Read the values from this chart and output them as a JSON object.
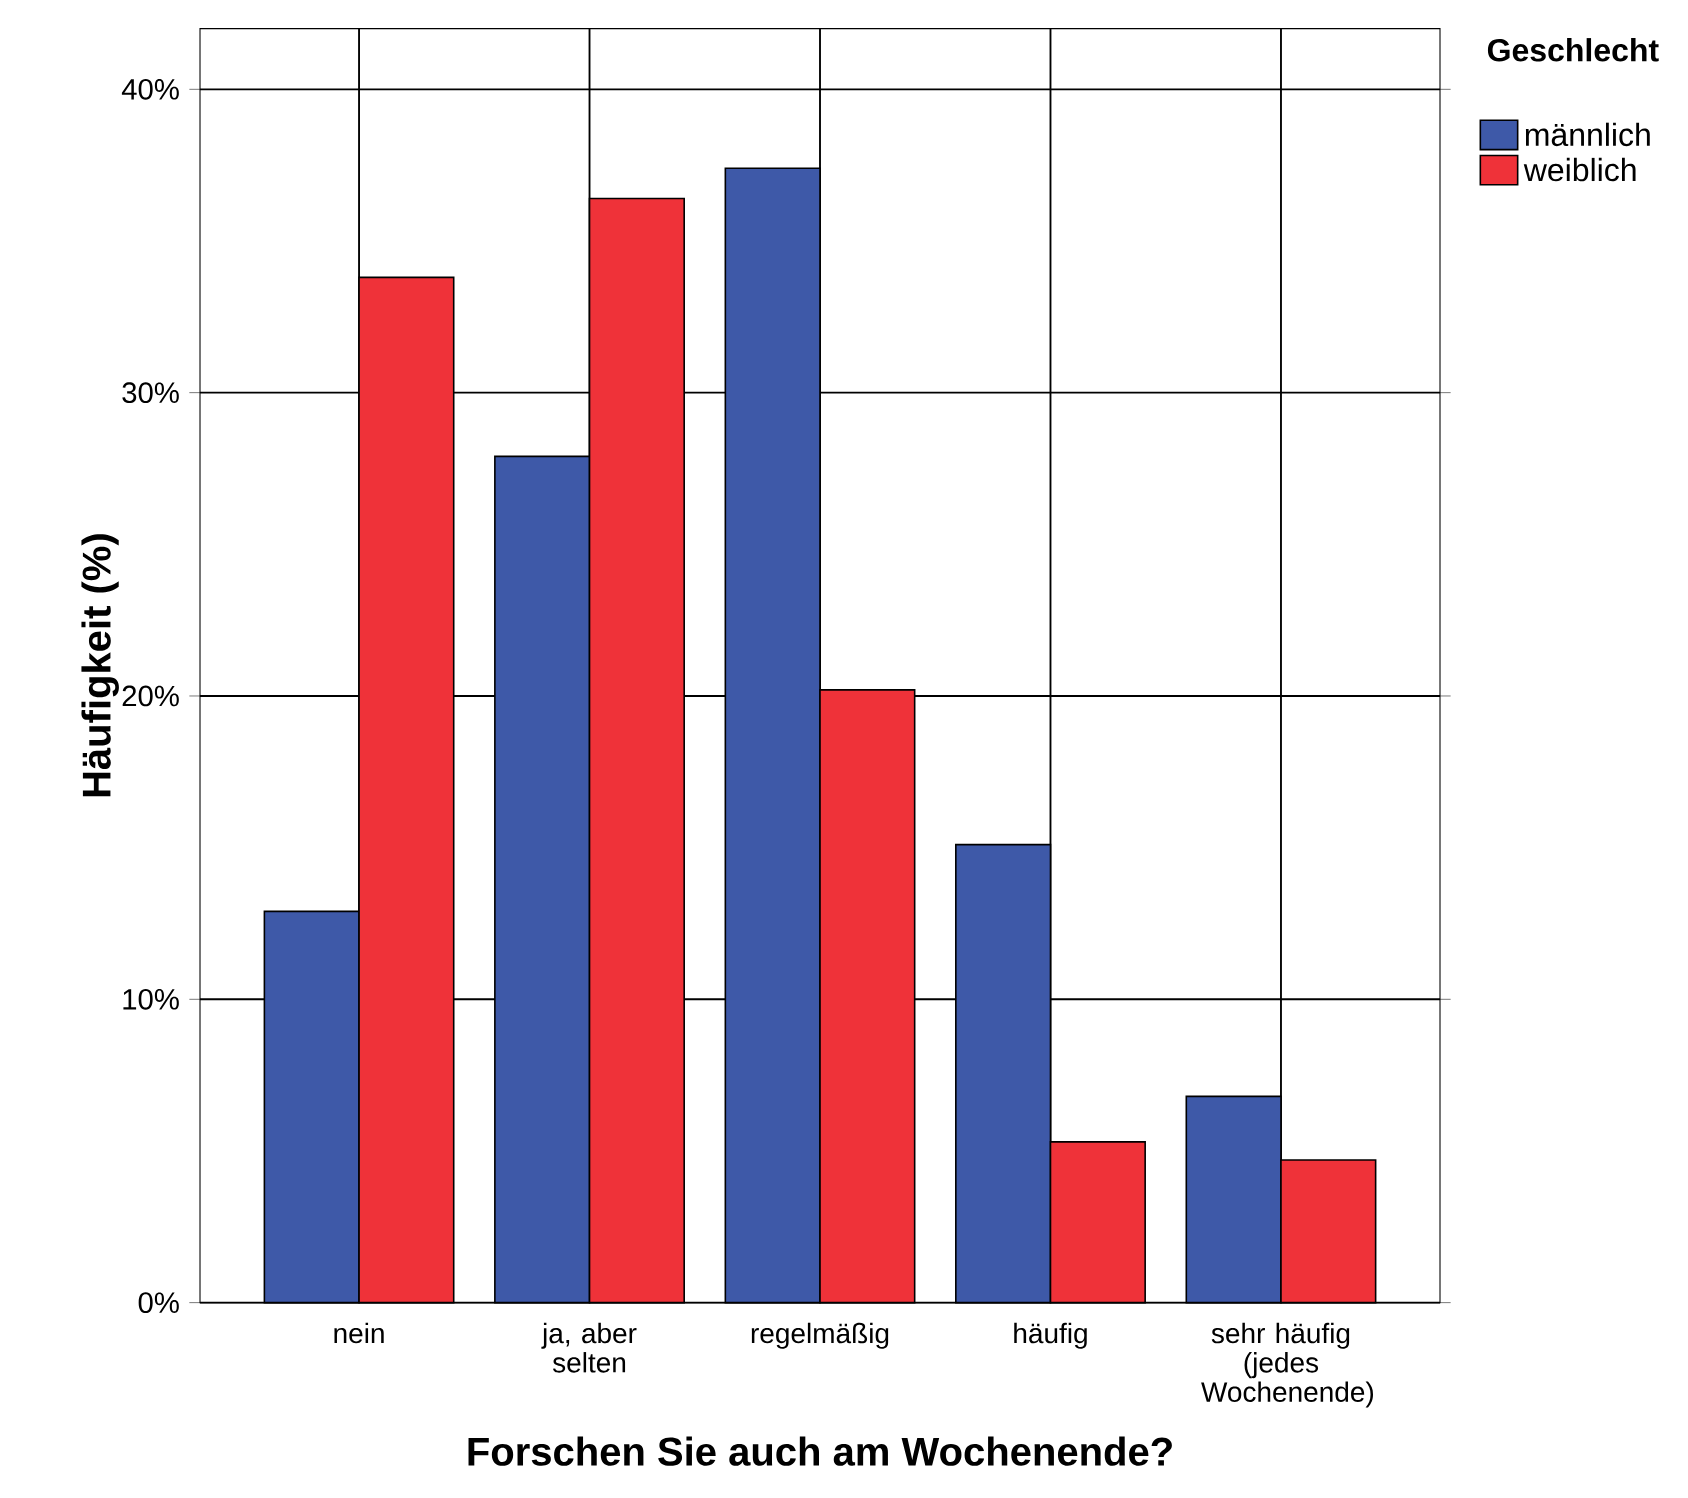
{
  "chart_data": {
    "type": "bar",
    "xlabel": "Forschen Sie auch am Wochenende?",
    "ylabel": "Häufigkeit (%)",
    "legend_title": "Geschlecht",
    "categories": [
      "nein",
      "ja, aber selten",
      "regelmäßig",
      "häufig",
      "sehr häufig (jedes Wochenende)"
    ],
    "series": [
      {
        "name": "männlich",
        "color": "#3e59a8",
        "values": [
          12.9,
          27.9,
          37.4,
          15.1,
          6.8
        ]
      },
      {
        "name": "weiblich",
        "color": "#ef3239",
        "values": [
          33.8,
          36.4,
          20.2,
          5.3,
          4.7
        ]
      }
    ],
    "ylim": [
      0,
      42
    ],
    "yticks": [
      {
        "value": 0,
        "label": "0%"
      },
      {
        "value": 10,
        "label": "10%"
      },
      {
        "value": 20,
        "label": "20%"
      },
      {
        "value": 30,
        "label": "30%"
      },
      {
        "value": 40,
        "label": "40%"
      }
    ],
    "grid": true,
    "legend": "top right"
  }
}
